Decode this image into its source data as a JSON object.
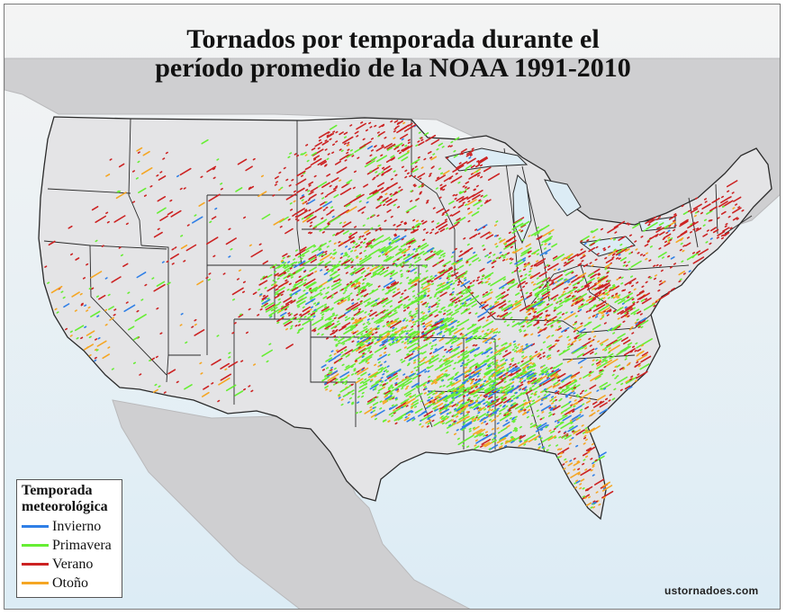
{
  "title": {
    "line1": "Tornados por temporada durante el",
    "line2": "período promedio de la NOAA 1991-2010"
  },
  "legend": {
    "title_line1": "Temporada",
    "title_line2": "meteorológica",
    "items": [
      {
        "label": "Invierno",
        "color": "#2f7fe6"
      },
      {
        "label": "Primavera",
        "color": "#66ee33"
      },
      {
        "label": "Verano",
        "color": "#cc2222"
      },
      {
        "label": "Otoño",
        "color": "#f5a623"
      }
    ]
  },
  "watermark": "ustornadoes.com",
  "colors": {
    "ocean": "#dcecf5",
    "land_states": "#e4e4e6",
    "land_other": "#c9c9cb",
    "state_border": "#2a2a2a"
  }
}
